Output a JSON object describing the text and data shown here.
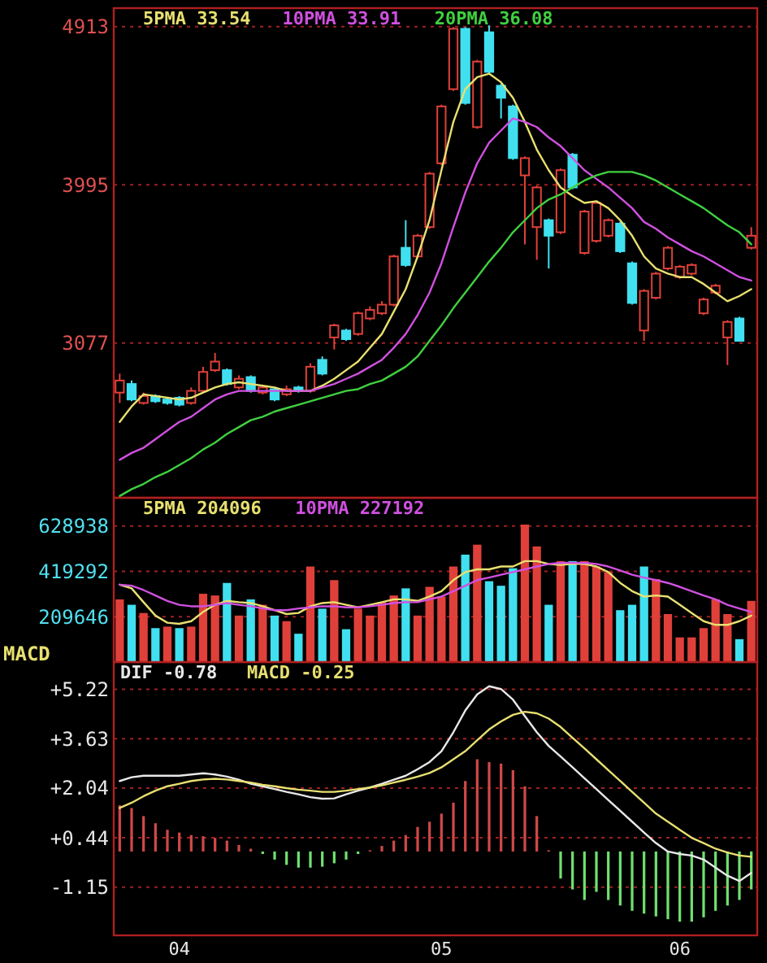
{
  "chart_data": [
    {
      "type": "candlestick",
      "legend": "top",
      "grid": "y",
      "tick_labels": "y",
      "categories": [
        null,
        null,
        null,
        null,
        null,
        null,
        null,
        null,
        null,
        null,
        null,
        null,
        null,
        null,
        null,
        null,
        null,
        null,
        null,
        null,
        null,
        null,
        null,
        null,
        null,
        null,
        null,
        null,
        null,
        null,
        null,
        null,
        null,
        null,
        null,
        null,
        null,
        null,
        null,
        null,
        null,
        null,
        null,
        null,
        null,
        null,
        null,
        null,
        null,
        null,
        null,
        null,
        null,
        null
      ],
      "ohlc": [
        [
          2790,
          2900,
          2730,
          2860
        ],
        [
          2840,
          2860,
          2740,
          2750
        ],
        [
          2730,
          2790,
          2720,
          2770
        ],
        [
          2770,
          2780,
          2730,
          2740
        ],
        [
          2750,
          2760,
          2720,
          2730
        ],
        [
          2760,
          2770,
          2710,
          2720
        ],
        [
          2730,
          2820,
          2720,
          2800
        ],
        [
          2800,
          2940,
          2790,
          2910
        ],
        [
          2920,
          3020,
          2910,
          2970
        ],
        [
          2920,
          2930,
          2830,
          2840
        ],
        [
          2820,
          2890,
          2810,
          2870
        ],
        [
          2880,
          2890,
          2790,
          2800
        ],
        [
          2790,
          2830,
          2780,
          2820
        ],
        [
          2810,
          2820,
          2740,
          2750
        ],
        [
          2780,
          2830,
          2770,
          2810
        ],
        [
          2820,
          2830,
          2790,
          2800
        ],
        [
          2800,
          2960,
          2790,
          2940
        ],
        [
          2980,
          3000,
          2890,
          2900
        ],
        [
          3110,
          3190,
          3040,
          3180
        ],
        [
          3150,
          3160,
          3090,
          3100
        ],
        [
          3130,
          3260,
          3120,
          3250
        ],
        [
          3220,
          3290,
          3210,
          3270
        ],
        [
          3250,
          3320,
          3240,
          3300
        ],
        [
          3300,
          3590,
          3290,
          3580
        ],
        [
          3630,
          3790,
          3520,
          3530
        ],
        [
          3580,
          3710,
          3570,
          3700
        ],
        [
          3750,
          4070,
          3740,
          4060
        ],
        [
          4120,
          4460,
          4110,
          4450
        ],
        [
          4550,
          4910,
          4540,
          4900
        ],
        [
          4900,
          4910,
          4460,
          4470
        ],
        [
          4330,
          4720,
          4320,
          4710
        ],
        [
          4880,
          4920,
          4640,
          4650
        ],
        [
          4570,
          4580,
          4380,
          4500
        ],
        [
          4450,
          4460,
          4140,
          4150
        ],
        [
          4050,
          4160,
          3650,
          4150
        ],
        [
          3750,
          3990,
          3560,
          3980
        ],
        [
          3790,
          3800,
          3510,
          3700
        ],
        [
          3720,
          4090,
          3710,
          4080
        ],
        [
          4170,
          4180,
          3970,
          3980
        ],
        [
          3600,
          3850,
          3590,
          3840
        ],
        [
          3670,
          3900,
          3660,
          3890
        ],
        [
          3700,
          3800,
          3690,
          3790
        ],
        [
          3770,
          3780,
          3600,
          3610
        ],
        [
          3540,
          3550,
          3300,
          3310
        ],
        [
          3150,
          3390,
          3090,
          3380
        ],
        [
          3340,
          3490,
          3330,
          3480
        ],
        [
          3510,
          3640,
          3500,
          3630
        ],
        [
          3460,
          3530,
          3450,
          3520
        ],
        [
          3480,
          3540,
          3470,
          3530
        ],
        [
          3250,
          3340,
          3240,
          3330
        ],
        [
          3370,
          3420,
          3360,
          3410
        ],
        [
          3110,
          3210,
          2950,
          3200
        ],
        [
          3220,
          3230,
          3090,
          3090
        ],
        [
          3630,
          3750,
          3620,
          3700
        ]
      ],
      "colors": [
        "#e0403a",
        "#40e0f0",
        "#e0403a",
        "#40e0f0",
        "#40e0f0",
        "#40e0f0",
        "#e0403a",
        "#e0403a",
        "#e0403a",
        "#40e0f0",
        "#e0403a",
        "#40e0f0",
        "#e0403a",
        "#40e0f0",
        "#e0403a",
        "#40e0f0",
        "#e0403a",
        "#40e0f0",
        "#e0403a",
        "#40e0f0",
        "#e0403a",
        "#e0403a",
        "#e0403a",
        "#e0403a",
        "#40e0f0",
        "#e0403a",
        "#e0403a",
        "#e0403a",
        "#e0403a",
        "#40e0f0",
        "#e0403a",
        "#40e0f0",
        "#40e0f0",
        "#40e0f0",
        "#e0403a",
        "#e0403a",
        "#40e0f0",
        "#e0403a",
        "#40e0f0",
        "#e0403a",
        "#e0403a",
        "#e0403a",
        "#40e0f0",
        "#40e0f0",
        "#e0403a",
        "#e0403a",
        "#e0403a",
        "#e0403a",
        "#e0403a",
        "#e0403a",
        "#e0403a",
        "#e0403a",
        "#40e0f0",
        "#e0403a"
      ],
      "series": [
        {
          "name": "5PMA 33.54",
          "type": "line",
          "color": "#e8e070",
          "values": [
            2620,
            2710,
            2780,
            2770,
            2760,
            2750,
            2760,
            2790,
            2820,
            2840,
            2850,
            2840,
            2830,
            2820,
            2800,
            2800,
            2800,
            2830,
            2870,
            2920,
            2970,
            3050,
            3130,
            3260,
            3390,
            3580,
            3790,
            4080,
            4360,
            4550,
            4620,
            4640,
            4590,
            4500,
            4360,
            4200,
            4080,
            3980,
            3930,
            3890,
            3900,
            3860,
            3790,
            3700,
            3580,
            3510,
            3480,
            3460,
            3460,
            3420,
            3370,
            3320,
            3350,
            3390
          ]
        },
        {
          "name": "10PMA 33.91",
          "type": "line",
          "color": "#d050e0",
          "values": [
            2400,
            2440,
            2470,
            2520,
            2570,
            2620,
            2650,
            2700,
            2750,
            2780,
            2800,
            2800,
            2800,
            2800,
            2800,
            2800,
            2800,
            2820,
            2840,
            2870,
            2900,
            2940,
            2980,
            3050,
            3130,
            3240,
            3370,
            3540,
            3750,
            3950,
            4120,
            4240,
            4310,
            4380,
            4360,
            4330,
            4270,
            4220,
            4150,
            4080,
            4030,
            3980,
            3920,
            3860,
            3780,
            3740,
            3690,
            3650,
            3610,
            3580,
            3540,
            3500,
            3460,
            3440
          ]
        },
        {
          "name": "20PMA 36.08",
          "type": "line",
          "color": "#40d040",
          "values": [
            2190,
            2230,
            2260,
            2300,
            2330,
            2370,
            2410,
            2460,
            2500,
            2550,
            2590,
            2630,
            2650,
            2680,
            2700,
            2720,
            2740,
            2760,
            2780,
            2800,
            2810,
            2840,
            2860,
            2900,
            2940,
            3000,
            3090,
            3180,
            3280,
            3370,
            3460,
            3550,
            3630,
            3720,
            3790,
            3860,
            3910,
            3940,
            3980,
            4020,
            4050,
            4070,
            4070,
            4070,
            4050,
            4020,
            3980,
            3940,
            3900,
            3860,
            3810,
            3760,
            3720,
            3650
          ]
        }
      ],
      "ylim": [
        2180,
        5020
      ],
      "yticks": [
        3077,
        3995,
        4913
      ]
    },
    {
      "type": "bar",
      "legend": "top",
      "grid": "y",
      "tick_labels": "y",
      "categories": [
        null,
        null,
        null,
        null,
        null,
        null,
        null,
        null,
        null,
        null,
        null,
        null,
        null,
        null,
        null,
        null,
        null,
        null,
        null,
        null,
        null,
        null,
        null,
        null,
        null,
        null,
        null,
        null,
        null,
        null,
        null,
        null,
        null,
        null,
        null,
        null,
        null,
        null,
        null,
        null,
        null,
        null,
        null,
        null,
        null,
        null,
        null,
        null,
        null,
        null,
        null,
        null,
        null,
        null
      ],
      "series": [
        {
          "type": "bar",
          "values": [
            290000,
            265000,
            227000,
            157000,
            164000,
            157000,
            164000,
            316000,
            308000,
            366000,
            215000,
            290000,
            265000,
            215000,
            189000,
            131000,
            442000,
            247000,
            379000,
            152000,
            247000,
            215000,
            278000,
            308000,
            341000,
            215000,
            348000,
            303000,
            442000,
            497000,
            543000,
            374000,
            353000,
            434000,
            636000,
            535000,
            265000,
            467000,
            467000,
            467000,
            442000,
            416000,
            240000,
            265000,
            442000,
            384000,
            222000,
            114000,
            114000,
            157000,
            290000,
            222000,
            106000,
            283000
          ],
          "colors": [
            "#e0403a",
            "#40e0f0",
            "#e0403a",
            "#40e0f0",
            "#e0403a",
            "#40e0f0",
            "#e0403a",
            "#e0403a",
            "#e0403a",
            "#40e0f0",
            "#e0403a",
            "#40e0f0",
            "#e0403a",
            "#40e0f0",
            "#e0403a",
            "#40e0f0",
            "#e0403a",
            "#40e0f0",
            "#e0403a",
            "#40e0f0",
            "#e0403a",
            "#e0403a",
            "#e0403a",
            "#e0403a",
            "#40e0f0",
            "#e0403a",
            "#e0403a",
            "#e0403a",
            "#e0403a",
            "#40e0f0",
            "#e0403a",
            "#40e0f0",
            "#40e0f0",
            "#40e0f0",
            "#e0403a",
            "#e0403a",
            "#40e0f0",
            "#e0403a",
            "#40e0f0",
            "#e0403a",
            "#e0403a",
            "#e0403a",
            "#40e0f0",
            "#40e0f0",
            "#40e0f0",
            "#e0403a",
            "#e0403a",
            "#e0403a",
            "#e0403a",
            "#e0403a",
            "#e0403a",
            "#e0403a",
            "#40e0f0",
            "#e0403a"
          ]
        },
        {
          "name": "5PMA 204096",
          "type": "line",
          "color": "#e8e070",
          "values": [
            358000,
            341000,
            277000,
            215000,
            182000,
            177000,
            189000,
            232000,
            265000,
            283000,
            277000,
            273000,
            258000,
            240000,
            222000,
            227000,
            258000,
            273000,
            277000,
            265000,
            253000,
            265000,
            277000,
            290000,
            290000,
            283000,
            303000,
            328000,
            379000,
            416000,
            429000,
            429000,
            442000,
            442000,
            467000,
            467000,
            454000,
            449000,
            454000,
            454000,
            442000,
            416000,
            366000,
            328000,
            303000,
            308000,
            303000,
            265000,
            227000,
            189000,
            172000,
            172000,
            189000,
            215000
          ]
        },
        {
          "name": "10PMA 227192",
          "type": "line",
          "color": "#d050e0",
          "values": [
            358000,
            353000,
            333000,
            308000,
            283000,
            265000,
            258000,
            258000,
            265000,
            273000,
            265000,
            258000,
            248000,
            240000,
            240000,
            248000,
            253000,
            258000,
            258000,
            253000,
            253000,
            258000,
            265000,
            273000,
            277000,
            277000,
            290000,
            303000,
            328000,
            353000,
            379000,
            391000,
            404000,
            416000,
            429000,
            442000,
            454000,
            459000,
            459000,
            459000,
            454000,
            442000,
            424000,
            404000,
            391000,
            379000,
            366000,
            348000,
            328000,
            308000,
            290000,
            265000,
            248000,
            232000
          ]
        }
      ],
      "ylim": [
        0,
        760000
      ],
      "yticks": [
        209646,
        419292,
        628938
      ]
    },
    {
      "type": "bar",
      "title": "MACD",
      "legend": "top",
      "grid": "y",
      "categories": [
        null,
        null,
        null,
        null,
        null,
        "04",
        null,
        null,
        null,
        null,
        null,
        null,
        null,
        null,
        null,
        null,
        null,
        null,
        null,
        null,
        null,
        null,
        null,
        null,
        null,
        null,
        null,
        "05",
        null,
        null,
        null,
        null,
        null,
        null,
        null,
        null,
        null,
        null,
        null,
        null,
        null,
        null,
        null,
        null,
        null,
        null,
        null,
        "06",
        null,
        null,
        null,
        null,
        null,
        null
      ],
      "series": [
        {
          "type": "bar",
          "values": [
            1.49,
            1.4,
            1.14,
            0.91,
            0.7,
            0.61,
            0.53,
            0.49,
            0.44,
            0.35,
            0.21,
            0.09,
            -0.08,
            -0.26,
            -0.43,
            -0.52,
            -0.52,
            -0.49,
            -0.38,
            -0.26,
            -0.08,
            0.04,
            0.18,
            0.35,
            0.53,
            0.79,
            0.96,
            1.22,
            1.57,
            2.27,
            2.97,
            2.88,
            2.83,
            2.62,
            2.1,
            1.14,
            0.04,
            -0.87,
            -1.22,
            -1.56,
            -1.3,
            -1.56,
            -1.74,
            -1.91,
            -2.0,
            -2.09,
            -2.18,
            -2.26,
            -2.26,
            -2.12,
            -1.91,
            -1.74,
            -1.56,
            -1.22
          ],
          "colors": [
            "#d04848",
            "#d04848",
            "#d04848",
            "#d04848",
            "#d04848",
            "#d04848",
            "#d04848",
            "#d04848",
            "#d04848",
            "#d04848",
            "#d04848",
            "#d04848",
            "#70e070",
            "#70e070",
            "#70e070",
            "#70e070",
            "#70e070",
            "#70e070",
            "#70e070",
            "#70e070",
            "#70e070",
            "#d04848",
            "#d04848",
            "#d04848",
            "#d04848",
            "#d04848",
            "#d04848",
            "#d04848",
            "#d04848",
            "#d04848",
            "#d04848",
            "#d04848",
            "#d04848",
            "#d04848",
            "#d04848",
            "#d04848",
            "#d04848",
            "#70e070",
            "#70e070",
            "#70e070",
            "#70e070",
            "#70e070",
            "#70e070",
            "#70e070",
            "#70e070",
            "#70e070",
            "#70e070",
            "#70e070",
            "#70e070",
            "#70e070",
            "#70e070",
            "#70e070",
            "#70e070",
            "#70e070"
          ]
        },
        {
          "name": "DIF -0.78",
          "type": "line",
          "color": "#e8e8e8",
          "values": [
            2.27,
            2.39,
            2.44,
            2.44,
            2.44,
            2.44,
            2.48,
            2.52,
            2.48,
            2.41,
            2.31,
            2.18,
            2.1,
            2.01,
            1.92,
            1.84,
            1.75,
            1.7,
            1.71,
            1.84,
            1.96,
            2.06,
            2.18,
            2.31,
            2.44,
            2.65,
            2.88,
            3.23,
            3.84,
            4.54,
            5.06,
            5.32,
            5.23,
            4.89,
            4.36,
            3.84,
            3.4,
            3.06,
            2.71,
            2.36,
            2.01,
            1.66,
            1.31,
            0.96,
            0.61,
            0.27,
            0.0,
            -0.08,
            -0.13,
            -0.26,
            -0.52,
            -0.78,
            -0.95,
            -0.69
          ]
        },
        {
          "name": "MACD -0.25",
          "type": "line",
          "color": "#e8e070",
          "values": [
            1.4,
            1.57,
            1.78,
            1.96,
            2.1,
            2.18,
            2.27,
            2.32,
            2.34,
            2.32,
            2.27,
            2.22,
            2.15,
            2.1,
            2.04,
            1.99,
            1.96,
            1.92,
            1.92,
            1.96,
            2.01,
            2.06,
            2.13,
            2.22,
            2.31,
            2.41,
            2.53,
            2.71,
            2.97,
            3.23,
            3.58,
            3.93,
            4.19,
            4.4,
            4.5,
            4.45,
            4.28,
            4.01,
            3.66,
            3.32,
            2.97,
            2.62,
            2.27,
            1.92,
            1.57,
            1.22,
            0.96,
            0.7,
            0.44,
            0.27,
            0.09,
            -0.03,
            -0.13,
            -0.17
          ]
        }
      ],
      "ylim": [
        -2.7,
        6.1
      ],
      "yticks": [
        -1.15,
        {
          "value": 0.44,
          "label": "+0.44"
        },
        {
          "value": 2.04,
          "label": "+2.04"
        },
        {
          "value": 3.63,
          "label": "+3.63"
        },
        {
          "value": 5.22,
          "label": "+5.22"
        }
      ]
    }
  ]
}
